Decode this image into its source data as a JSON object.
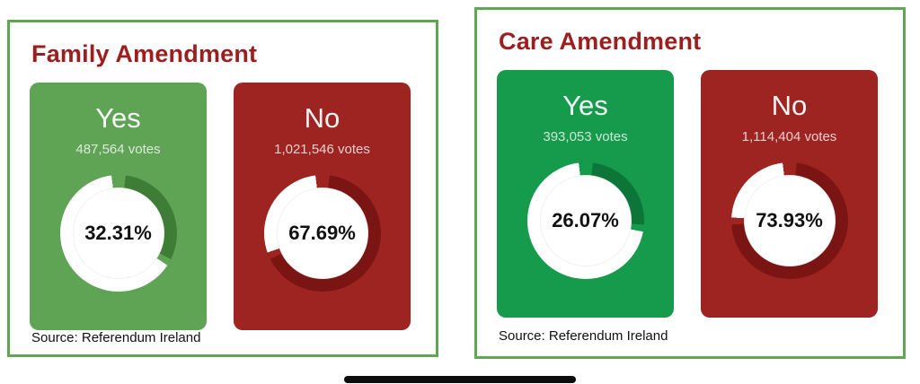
{
  "panels": [
    {
      "title": "Family Amendment",
      "source": "Source: Referendum Ireland",
      "cards": [
        {
          "label": "Yes",
          "votes": "487,564 votes",
          "percent": "32.31%",
          "value": 32.31,
          "card_color": "#5fa355",
          "arc_color": "#3d7d36"
        },
        {
          "label": "No",
          "votes": "1,021,546 votes",
          "percent": "67.69%",
          "value": 67.69,
          "card_color": "#9d2421",
          "arc_color": "#7a1513"
        }
      ]
    },
    {
      "title": "Care Amendment",
      "source": "Source: Referendum Ireland",
      "cards": [
        {
          "label": "Yes",
          "votes": "393,053 votes",
          "percent": "26.07%",
          "value": 26.07,
          "card_color": "#169a4b",
          "arc_color": "#0c7638"
        },
        {
          "label": "No",
          "votes": "1,114,404 votes",
          "percent": "73.93%",
          "value": 73.93,
          "card_color": "#9d2421",
          "arc_color": "#7a1513"
        }
      ]
    }
  ],
  "colors": {
    "panel_border": "#5ea64f",
    "title_red": "#9c1e1e",
    "background": "#ffffff"
  },
  "chart_data": [
    {
      "type": "pie",
      "title": "Family Amendment",
      "categories": [
        "Yes",
        "No"
      ],
      "values": [
        32.31,
        67.69
      ],
      "votes": [
        487564,
        1021546
      ],
      "labels": [
        "32.31%",
        "67.69%"
      ],
      "source": "Source: Referendum Ireland",
      "legend_position": "none",
      "colors": [
        "#5fa355",
        "#9d2421"
      ]
    },
    {
      "type": "pie",
      "title": "Care Amendment",
      "categories": [
        "Yes",
        "No"
      ],
      "values": [
        26.07,
        73.93
      ],
      "votes": [
        393053,
        1114404
      ],
      "labels": [
        "26.07%",
        "73.93%"
      ],
      "source": "Source: Referendum Ireland",
      "legend_position": "none",
      "colors": [
        "#169a4b",
        "#9d2421"
      ]
    }
  ]
}
